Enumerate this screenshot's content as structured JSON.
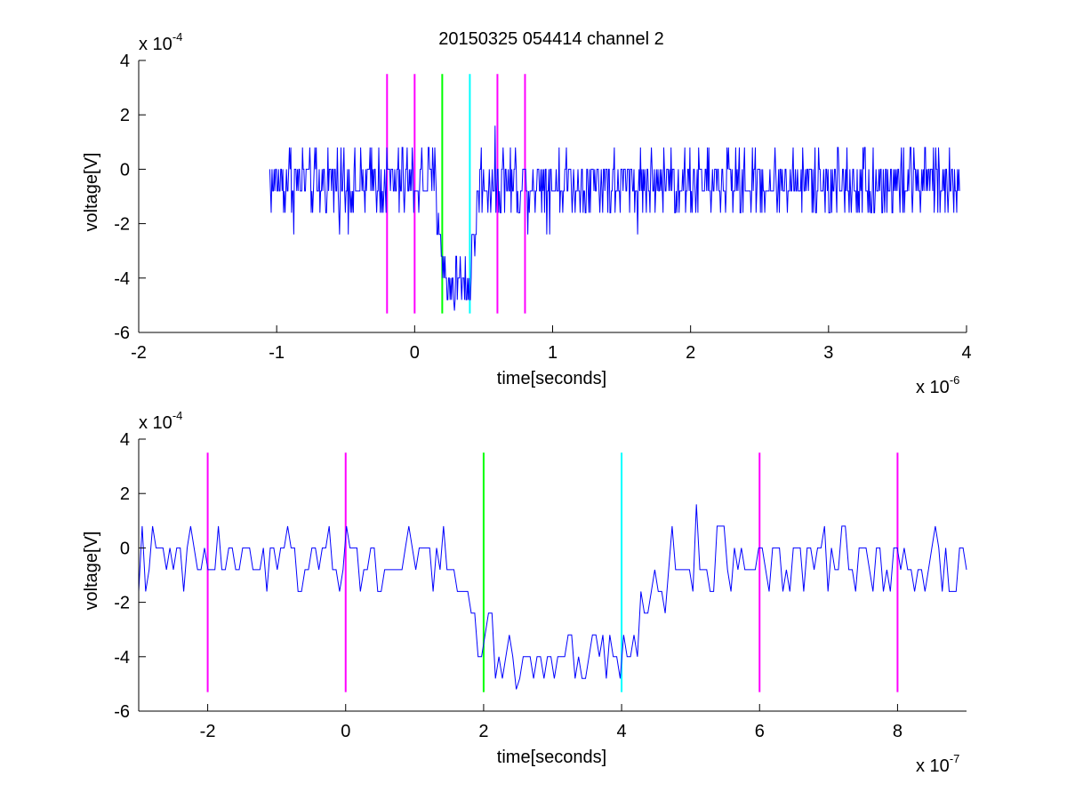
{
  "title": "20150325 054414 channel 2",
  "colors": {
    "signal": "#0000ff",
    "marker_magenta": "#ff00ff",
    "marker_green": "#00ff00",
    "marker_cyan": "#00ffff",
    "axes": "#000000",
    "background": "#ffffff"
  },
  "chart_data": [
    {
      "type": "line",
      "xlabel": "time[seconds]",
      "ylabel": "voltage[V]",
      "x_multiplier_text": "x 10",
      "x_multiplier_exp": "-6",
      "y_multiplier_text": "x 10",
      "y_multiplier_exp": "-4",
      "xlim": [
        -2,
        4
      ],
      "ylim": [
        -6,
        4
      ],
      "xticks": [
        "-2",
        "-1",
        "0",
        "1",
        "2",
        "3",
        "4"
      ],
      "yticks": [
        "-6",
        "-4",
        "-2",
        "0",
        "2",
        "4"
      ],
      "grid": false,
      "series": [
        {
          "x_range": [
            -1.05,
            3.95
          ],
          "quantization_step": 0.8,
          "baseline": -0.5,
          "noise_amplitude": 1.3,
          "pulse": {
            "x_start": 0.15,
            "x_end": 0.47,
            "depth": -3.7
          },
          "points": 950
        }
      ],
      "markers": [
        {
          "x": -0.2,
          "color": "magenta",
          "y_range": [
            -5.3,
            3.5
          ]
        },
        {
          "x": 0.0,
          "color": "magenta",
          "y_range": [
            -5.3,
            3.5
          ]
        },
        {
          "x": 0.2,
          "color": "green",
          "y_range": [
            -5.3,
            3.5
          ]
        },
        {
          "x": 0.4,
          "color": "cyan",
          "y_range": [
            -5.3,
            3.5
          ]
        },
        {
          "x": 0.6,
          "color": "magenta",
          "y_range": [
            -5.3,
            3.5
          ]
        },
        {
          "x": 0.8,
          "color": "magenta",
          "y_range": [
            -5.3,
            3.5
          ]
        }
      ]
    },
    {
      "type": "line",
      "xlabel": "time[seconds]",
      "ylabel": "voltage[V]",
      "x_multiplier_text": "x 10",
      "x_multiplier_exp": "-7",
      "y_multiplier_text": "x 10",
      "y_multiplier_exp": "-4",
      "xlim": [
        -3,
        9
      ],
      "ylim": [
        -6,
        4
      ],
      "xticks": [
        "-2",
        "0",
        "2",
        "4",
        "6",
        "8"
      ],
      "yticks": [
        "-6",
        "-4",
        "-2",
        "0",
        "2",
        "4"
      ],
      "grid": false,
      "series": [
        {
          "x_range": [
            -3,
            9
          ],
          "quantization_step": 0.8,
          "baseline": -0.5,
          "noise_amplitude": 1.3,
          "pulse": {
            "x_start": 1.5,
            "x_end": 4.7,
            "depth": -3.7
          },
          "points": 240
        }
      ],
      "markers": [
        {
          "x": -2,
          "color": "magenta",
          "y_range": [
            -5.3,
            3.5
          ]
        },
        {
          "x": 0,
          "color": "magenta",
          "y_range": [
            -5.3,
            3.5
          ]
        },
        {
          "x": 2,
          "color": "green",
          "y_range": [
            -5.3,
            3.5
          ]
        },
        {
          "x": 4,
          "color": "cyan",
          "y_range": [
            -5.3,
            3.5
          ]
        },
        {
          "x": 6,
          "color": "magenta",
          "y_range": [
            -5.3,
            3.5
          ]
        },
        {
          "x": 8,
          "color": "magenta",
          "y_range": [
            -5.3,
            3.5
          ]
        }
      ]
    }
  ]
}
